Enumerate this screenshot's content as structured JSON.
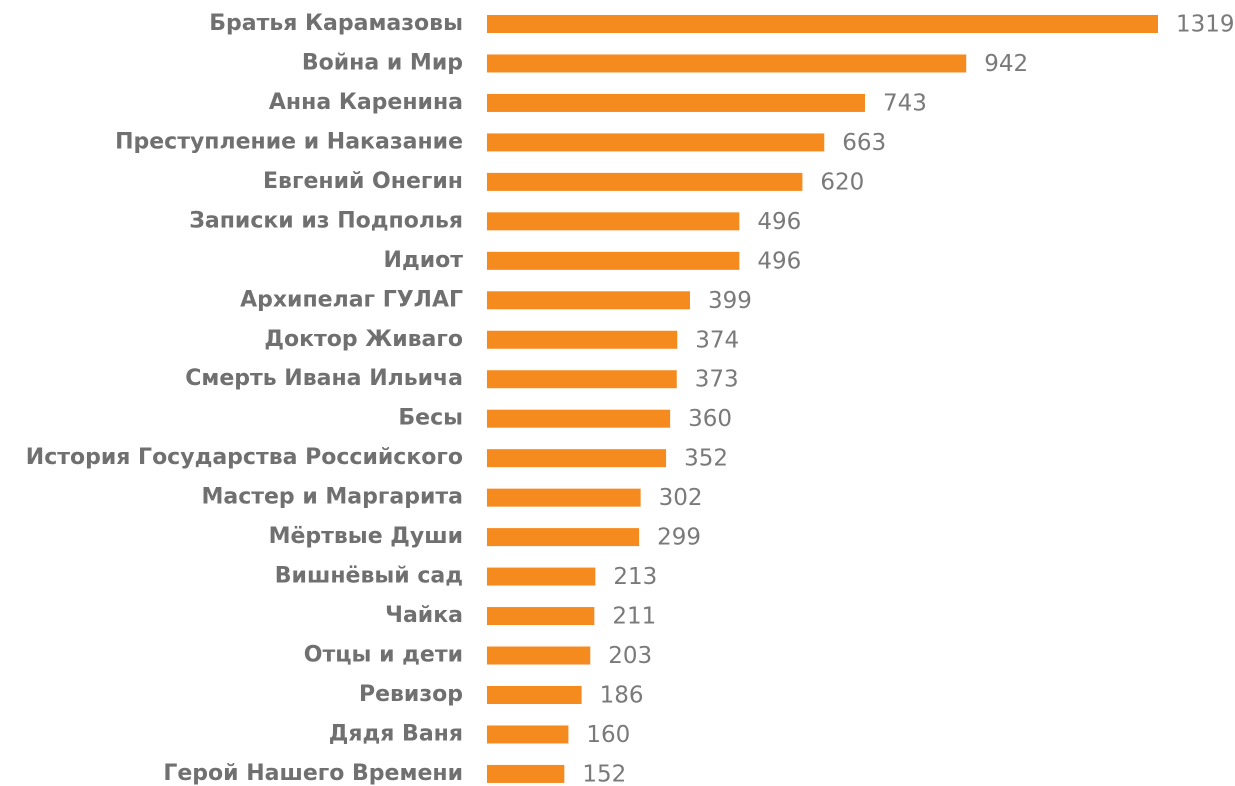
{
  "chart_data": {
    "type": "bar",
    "orientation": "horizontal",
    "color": "#f58a1f",
    "categories": [
      "Братья Карамазовы",
      "Война и Мир",
      "Анна Каренина",
      "Преступление и Наказание",
      "Евгений Онегин",
      "Записки из Подполья",
      "Идиот",
      "Архипелаг ГУЛАГ",
      "Доктор Живаго",
      "Смерть Ивана Ильича",
      "Бесы",
      "История Государства Российского",
      "Мастер и Маргарита",
      "Мёртвые Души",
      "Вишнёвый сад",
      "Чайка",
      "Отцы и дети",
      "Ревизор",
      "Дядя Ваня",
      "Герой Нашего Времени"
    ],
    "values": [
      1319,
      942,
      743,
      663,
      620,
      496,
      496,
      399,
      374,
      373,
      360,
      352,
      302,
      299,
      213,
      211,
      203,
      186,
      160,
      152
    ]
  }
}
